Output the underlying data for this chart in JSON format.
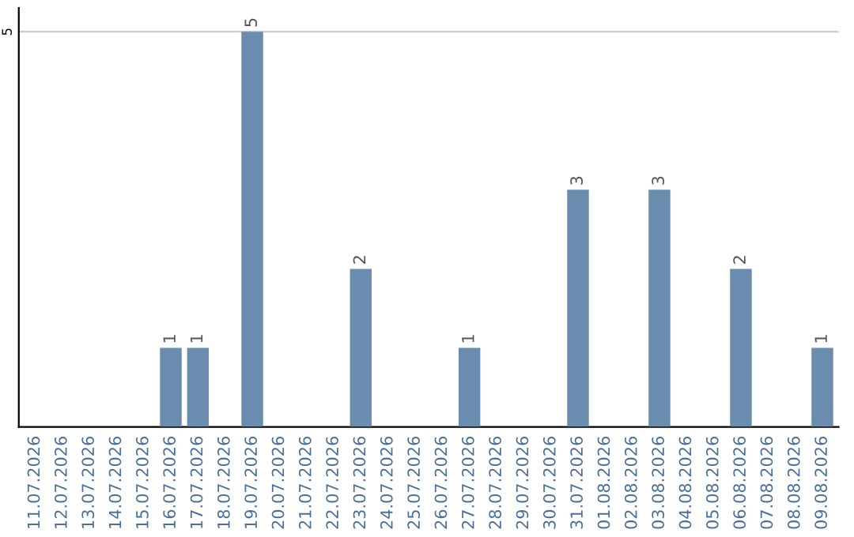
{
  "chart_data": {
    "type": "bar",
    "categories": [
      "11.07.2026",
      "12.07.2026",
      "13.07.2026",
      "14.07.2026",
      "15.07.2026",
      "16.07.2026",
      "17.07.2026",
      "18.07.2026",
      "19.07.2026",
      "20.07.2026",
      "21.07.2026",
      "22.07.2026",
      "23.07.2026",
      "24.07.2026",
      "25.07.2026",
      "26.07.2026",
      "27.07.2026",
      "28.07.2026",
      "29.07.2026",
      "30.07.2026",
      "31.07.2026",
      "01.08.2026",
      "02.08.2026",
      "03.08.2026",
      "04.08.2026",
      "05.08.2026",
      "06.08.2026",
      "07.08.2026",
      "08.08.2026",
      "09.08.2026"
    ],
    "values": [
      0,
      0,
      0,
      0,
      0,
      1,
      1,
      0,
      5,
      0,
      0,
      0,
      2,
      0,
      0,
      0,
      1,
      0,
      0,
      0,
      3,
      0,
      0,
      3,
      0,
      0,
      2,
      0,
      0,
      1
    ],
    "color": "#6a8caf",
    "value_labels": [
      null,
      null,
      null,
      null,
      null,
      "1",
      "1",
      null,
      "5",
      null,
      null,
      null,
      "2",
      null,
      null,
      null,
      "1",
      null,
      null,
      null,
      "3",
      null,
      null,
      "3",
      null,
      null,
      "2",
      null,
      null,
      "1"
    ],
    "ylim": [
      0,
      5.3
    ],
    "yticks": [
      5
    ],
    "grid": "y",
    "legend": false
  }
}
